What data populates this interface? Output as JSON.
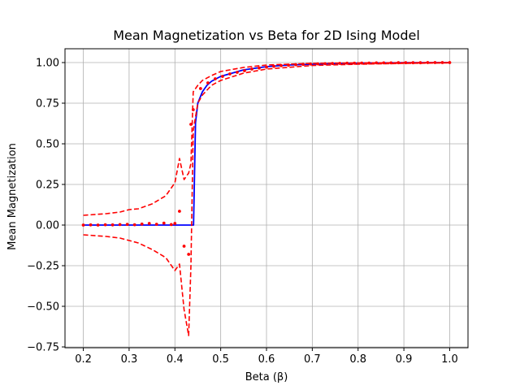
{
  "chart_data": {
    "type": "line",
    "title": "Mean Magnetization vs Beta for 2D Ising Model",
    "xlabel": "Beta (β)",
    "ylabel": "Mean Magnetization",
    "xlim": [
      0.16,
      1.04
    ],
    "ylim": [
      -0.755,
      1.085
    ],
    "x_ticks": [
      0.2,
      0.3,
      0.4,
      0.5,
      0.6,
      0.7,
      0.8,
      0.9,
      1.0
    ],
    "x_tick_labels": [
      "0.2",
      "0.3",
      "0.4",
      "0.5",
      "0.6",
      "0.7",
      "0.8",
      "0.9",
      "1.0"
    ],
    "y_ticks": [
      -0.75,
      -0.5,
      -0.25,
      0.0,
      0.25,
      0.5,
      0.75,
      1.0
    ],
    "y_tick_labels": [
      "−0.75",
      "−0.50",
      "−0.25",
      "0.00",
      "0.25",
      "0.50",
      "0.75",
      "1.00"
    ],
    "grid": true,
    "legend": "none",
    "colors": {
      "theory": "#0000ff",
      "simulation": "#ff0000",
      "grid": "#b0b0b0"
    },
    "series": [
      {
        "style": "solid-line",
        "color": "#0000ff",
        "x": [
          0.2,
          0.25,
          0.3,
          0.35,
          0.4,
          0.43,
          0.44,
          0.4407,
          0.445,
          0.45,
          0.46,
          0.47,
          0.48,
          0.5,
          0.55,
          0.6,
          0.65,
          0.7,
          0.75,
          0.8,
          0.85,
          0.9,
          0.95,
          1.0
        ],
        "y": [
          0.0,
          0.0,
          0.0,
          0.0,
          0.0,
          0.0,
          0.0,
          0.0,
          0.63,
          0.75,
          0.82,
          0.86,
          0.885,
          0.915,
          0.955,
          0.975,
          0.985,
          0.99,
          0.994,
          0.996,
          0.998,
          0.999,
          0.9995,
          1.0
        ]
      },
      {
        "style": "dots",
        "color": "#ff0000",
        "x": [
          0.2,
          0.216,
          0.232,
          0.248,
          0.264,
          0.28,
          0.296,
          0.312,
          0.328,
          0.344,
          0.36,
          0.376,
          0.392,
          0.4,
          0.41,
          0.42,
          0.43,
          0.435,
          0.44,
          0.456,
          0.472,
          0.488,
          0.504,
          0.52,
          0.536,
          0.552,
          0.568,
          0.584,
          0.6,
          0.616,
          0.632,
          0.648,
          0.664,
          0.68,
          0.696,
          0.712,
          0.728,
          0.744,
          0.76,
          0.776,
          0.792,
          0.808,
          0.824,
          0.84,
          0.856,
          0.872,
          0.888,
          0.904,
          0.92,
          0.936,
          0.952,
          0.968,
          0.984,
          1.0
        ],
        "y": [
          0.0,
          0.001,
          0.0,
          0.002,
          0.001,
          0.003,
          0.004,
          0.002,
          0.006,
          0.01,
          0.005,
          0.012,
          0.003,
          0.01,
          0.085,
          -0.13,
          -0.18,
          0.62,
          0.71,
          0.84,
          0.875,
          0.9,
          0.915,
          0.93,
          0.94,
          0.95,
          0.96,
          0.966,
          0.972,
          0.977,
          0.981,
          0.984,
          0.987,
          0.989,
          0.991,
          0.992,
          0.993,
          0.994,
          0.995,
          0.996,
          0.996,
          0.997,
          0.997,
          0.998,
          0.998,
          0.998,
          0.999,
          0.999,
          0.999,
          0.999,
          1.0,
          1.0,
          1.0,
          1.0
        ]
      },
      {
        "style": "dashed-line",
        "color": "#ff0000",
        "x": [
          0.2,
          0.25,
          0.28,
          0.3,
          0.32,
          0.35,
          0.38,
          0.4,
          0.41,
          0.42,
          0.43,
          0.435,
          0.44,
          0.45,
          0.46,
          0.48,
          0.5,
          0.55,
          0.6,
          0.7,
          0.8,
          0.9,
          1.0
        ],
        "y": [
          0.06,
          0.07,
          0.08,
          0.095,
          0.1,
          0.13,
          0.18,
          0.26,
          0.41,
          0.28,
          0.32,
          0.38,
          0.82,
          0.86,
          0.89,
          0.92,
          0.945,
          0.97,
          0.985,
          0.995,
          0.998,
          0.999,
          1.0
        ]
      },
      {
        "style": "dashed-line",
        "color": "#ff0000",
        "x": [
          0.2,
          0.25,
          0.28,
          0.3,
          0.32,
          0.35,
          0.38,
          0.4,
          0.41,
          0.42,
          0.43,
          0.435,
          0.44,
          0.45,
          0.46,
          0.48,
          0.5,
          0.55,
          0.6,
          0.7,
          0.8,
          0.9,
          1.0
        ],
        "y": [
          -0.06,
          -0.07,
          -0.08,
          -0.095,
          -0.11,
          -0.15,
          -0.2,
          -0.28,
          -0.24,
          -0.52,
          -0.68,
          -0.25,
          0.58,
          0.75,
          0.8,
          0.86,
          0.89,
          0.935,
          0.96,
          0.982,
          0.99,
          0.995,
          0.998
        ]
      }
    ]
  }
}
